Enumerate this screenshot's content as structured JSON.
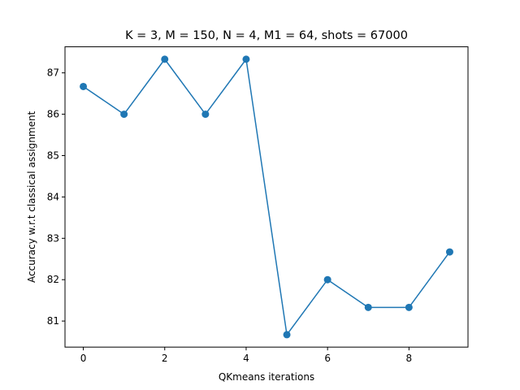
{
  "chart_data": {
    "type": "line",
    "title": "K = 3, M = 150, N = 4, M1 = 64, shots = 67000",
    "xlabel": "QKmeans iterations",
    "ylabel": "Accuracy w.r.t classical assignment",
    "x": [
      0,
      1,
      2,
      3,
      4,
      5,
      6,
      7,
      8,
      9
    ],
    "series": [
      {
        "values": [
          86.67,
          86.0,
          87.33,
          86.0,
          87.33,
          80.67,
          82.0,
          81.33,
          81.33,
          82.67
        ],
        "color": "#1f77b4",
        "marker": "circle"
      }
    ],
    "xlim": [
      -0.45,
      9.45
    ],
    "ylim": [
      80.37,
      87.63
    ],
    "xticks": [
      0,
      2,
      4,
      6,
      8
    ],
    "yticks": [
      81,
      82,
      83,
      84,
      85,
      86,
      87
    ],
    "grid": false,
    "legend": "none"
  }
}
